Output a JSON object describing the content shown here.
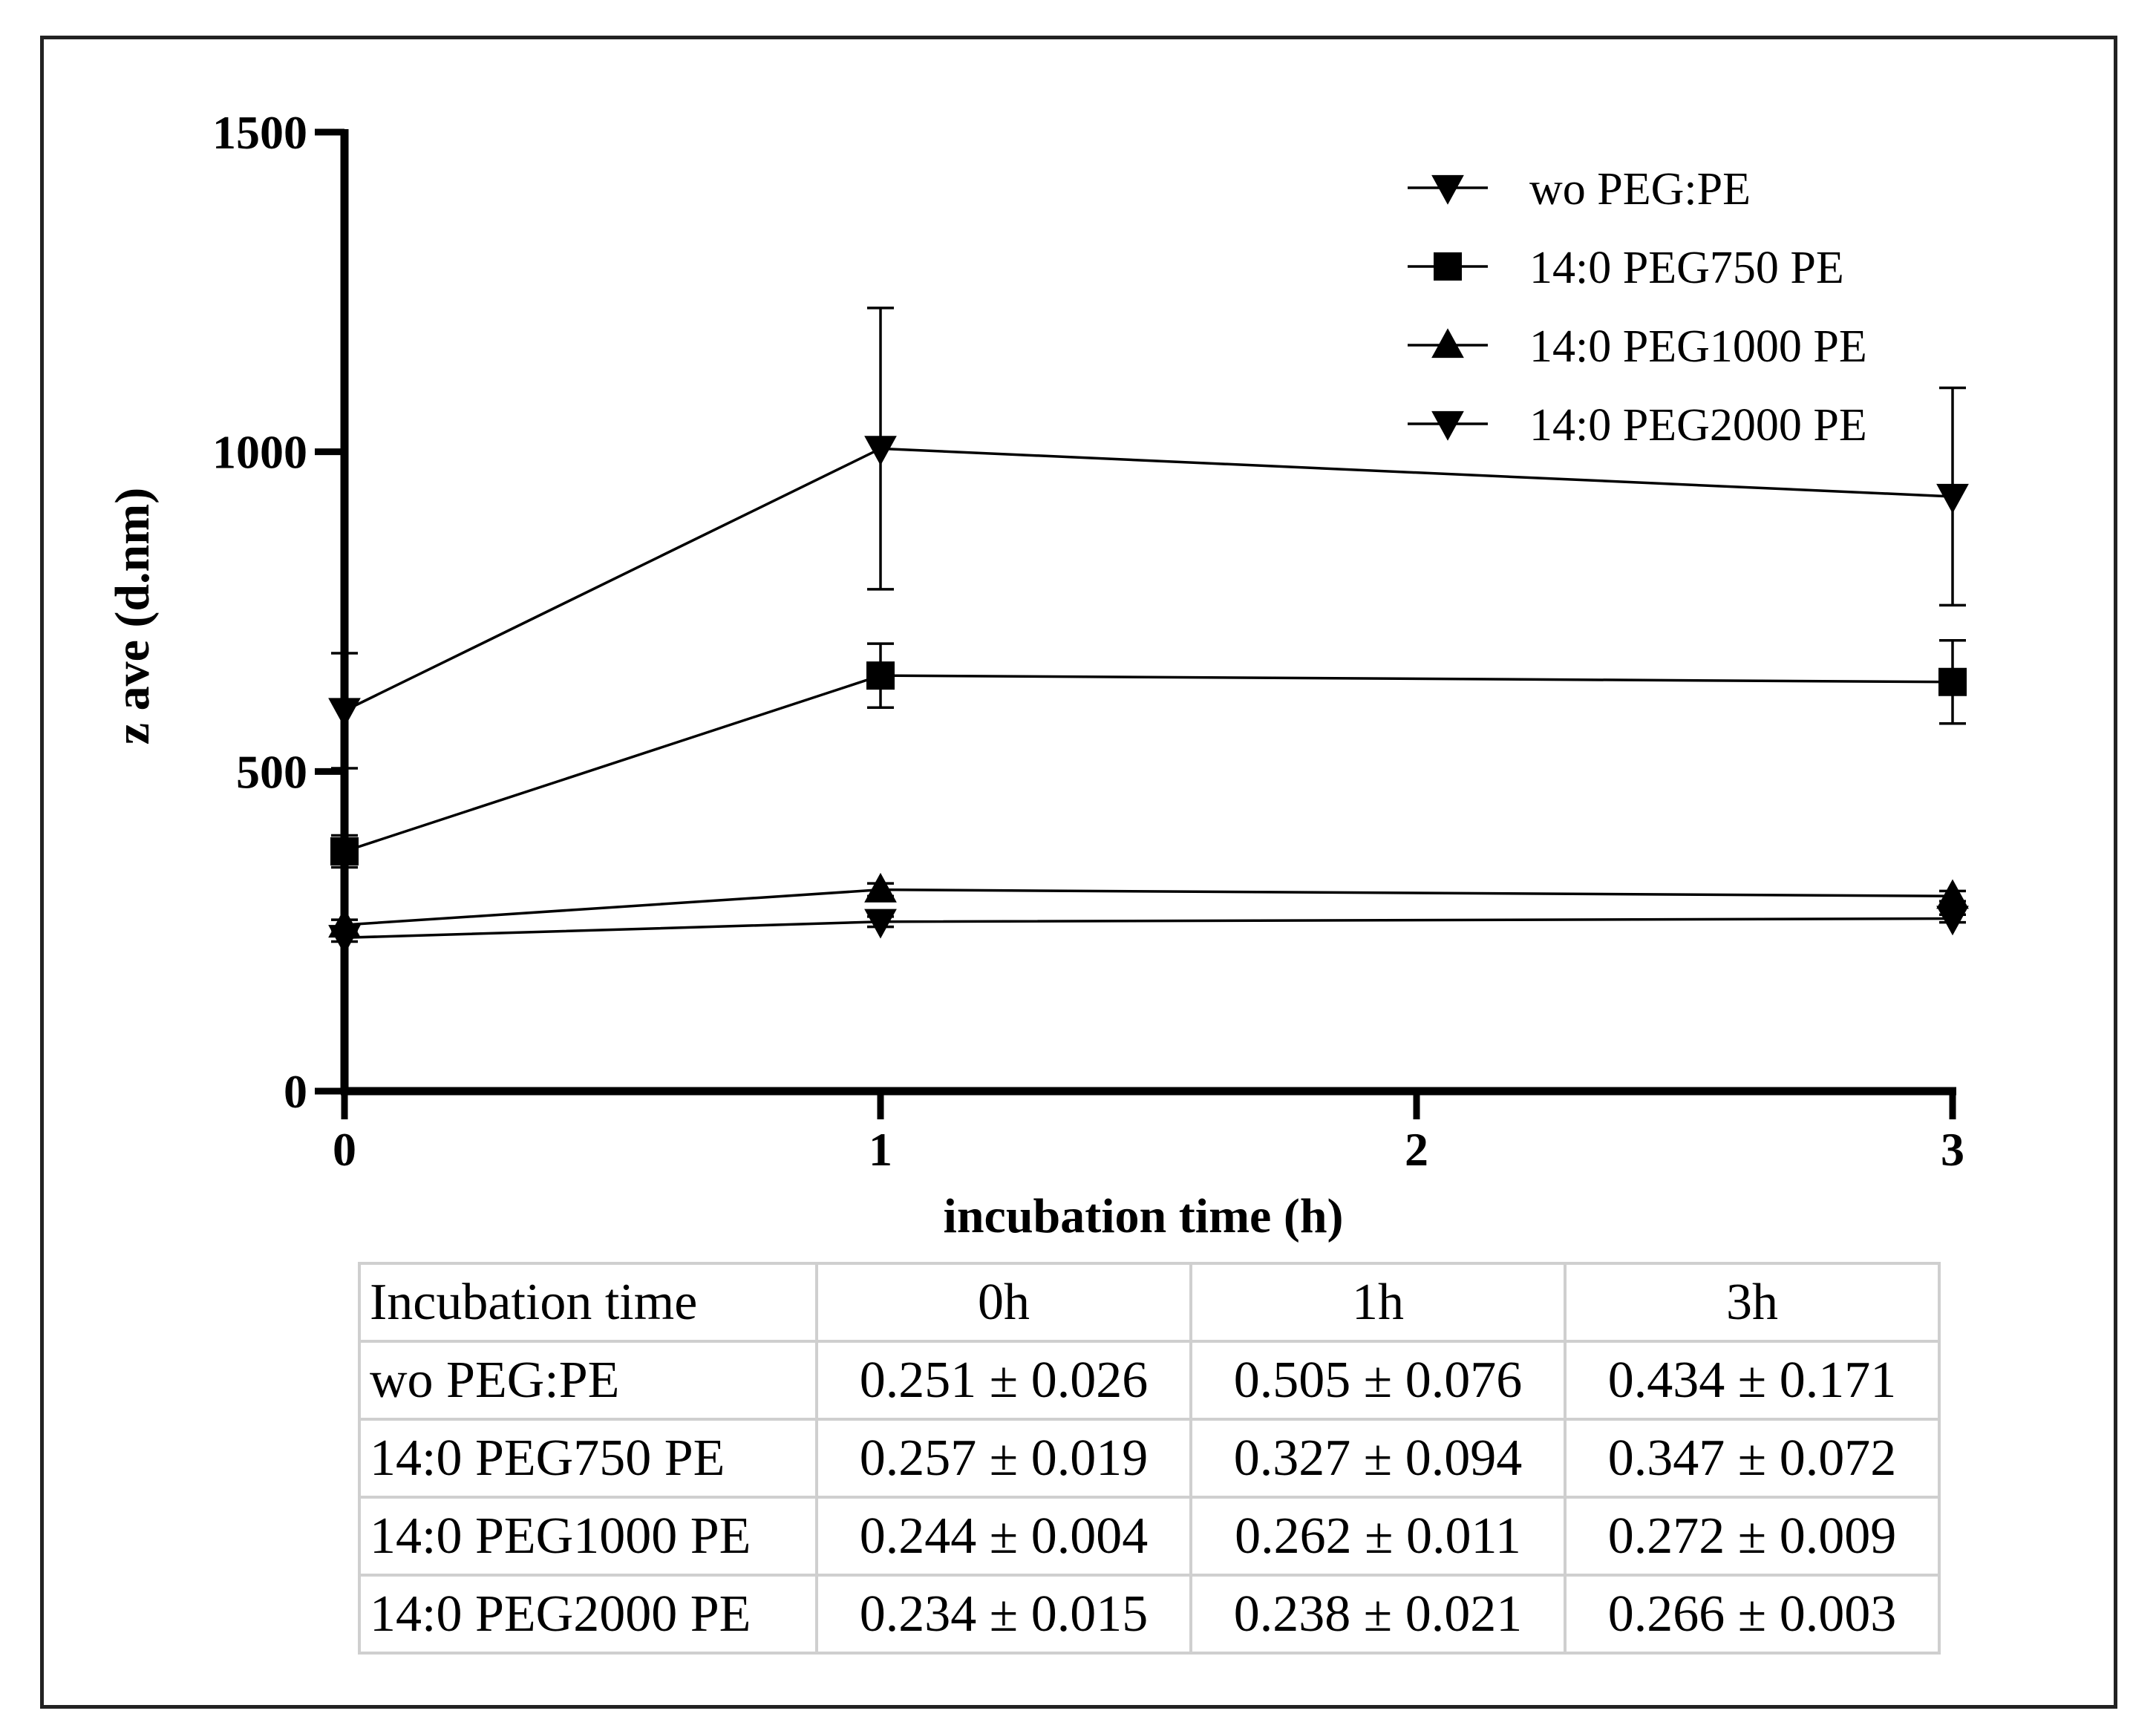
{
  "chart_data": {
    "type": "line",
    "title": "",
    "xlabel": "incubation time (h)",
    "ylabel": "z ave (d.nm)",
    "x": [
      0,
      1,
      3
    ],
    "xlim": [
      0,
      3
    ],
    "xticks": [
      0,
      1,
      2,
      3
    ],
    "xtick_labels": [
      "0",
      "1",
      "2",
      "3"
    ],
    "ylim": [
      0,
      1500
    ],
    "yticks": [
      0,
      500,
      1000,
      1500
    ],
    "ytick_labels": [
      "0",
      "500",
      "1000",
      "1500"
    ],
    "legend_position": "top-right",
    "series": [
      {
        "name": "wo PEG:PE",
        "marker": "triangle-down",
        "values": [
          595,
          1005,
          930
        ],
        "errors": [
          90,
          220,
          170
        ]
      },
      {
        "name": "14:0 PEG750 PE",
        "marker": "square",
        "values": [
          375,
          650,
          640
        ],
        "errors": [
          25,
          50,
          65
        ]
      },
      {
        "name": "14:0 PEG1000 PE",
        "marker": "triangle-up",
        "values": [
          260,
          315,
          305
        ],
        "errors": [
          8,
          10,
          8
        ]
      },
      {
        "name": "14:0 PEG2000 PE",
        "marker": "triangle-down",
        "values": [
          240,
          265,
          270
        ],
        "errors": [
          6,
          8,
          6
        ]
      }
    ]
  },
  "table": {
    "header": [
      "Incubation time",
      "0h",
      "1h",
      "3h"
    ],
    "rows": [
      [
        "wo PEG:PE",
        "0.251 ± 0.026",
        "0.505 ± 0.076",
        "0.434 ± 0.171"
      ],
      [
        "14:0 PEG750 PE",
        "0.257 ± 0.019",
        "0.327 ± 0.094",
        "0.347 ± 0.072"
      ],
      [
        "14:0 PEG1000 PE",
        "0.244 ± 0.004",
        "0.262 ± 0.011",
        "0.272 ± 0.009"
      ],
      [
        "14:0 PEG2000 PE",
        "0.234 ± 0.015",
        "0.238 ± 0.021",
        "0.266 ± 0.003"
      ]
    ]
  }
}
